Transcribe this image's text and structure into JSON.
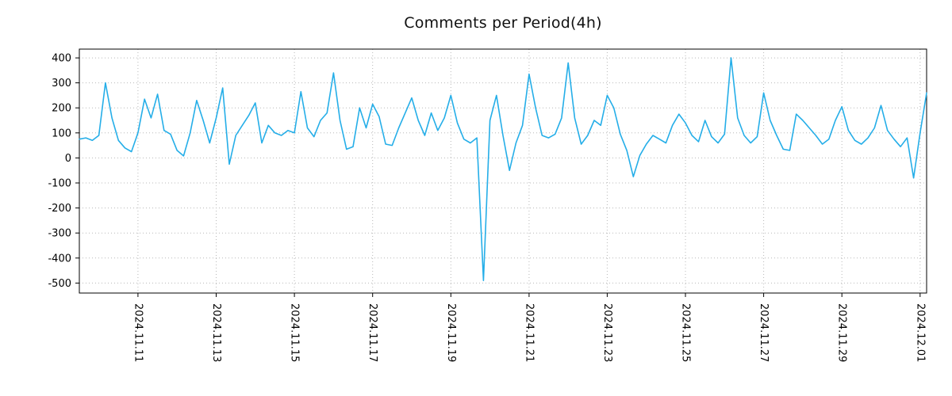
{
  "chart_data": {
    "type": "line",
    "title": "Comments per Period(4h)",
    "series_name": "comments",
    "line_color": "#25aee8",
    "grid": "dotted",
    "legend": "none",
    "xlabel": "",
    "ylabel": "",
    "x_start": "2024-11-09 12:00",
    "x_step_hours": 4,
    "xlim_hours": [
      0,
      520
    ],
    "ylim": [
      -540,
      435
    ],
    "y_ticks": [
      400,
      300,
      200,
      100,
      0,
      -100,
      -200,
      -300,
      -400,
      -500
    ],
    "x_ticks": [
      {
        "label": "2024.11.11",
        "hours": 36
      },
      {
        "label": "2024.11.13",
        "hours": 84
      },
      {
        "label": "2024.11.15",
        "hours": 132
      },
      {
        "label": "2024.11.17",
        "hours": 180
      },
      {
        "label": "2024.11.19",
        "hours": 228
      },
      {
        "label": "2024.11.21",
        "hours": 276
      },
      {
        "label": "2024.11.23",
        "hours": 324
      },
      {
        "label": "2024.11.25",
        "hours": 372
      },
      {
        "label": "2024.11.27",
        "hours": 420
      },
      {
        "label": "2024.11.29",
        "hours": 468
      },
      {
        "label": "2024.12.01",
        "hours": 516
      }
    ],
    "values": [
      75,
      80,
      70,
      90,
      300,
      160,
      70,
      40,
      25,
      100,
      235,
      160,
      255,
      110,
      95,
      30,
      8,
      100,
      230,
      150,
      60,
      160,
      280,
      -25,
      90,
      130,
      170,
      220,
      60,
      130,
      100,
      90,
      110,
      100,
      265,
      120,
      85,
      150,
      180,
      340,
      150,
      35,
      45,
      200,
      120,
      215,
      165,
      55,
      50,
      120,
      180,
      240,
      150,
      90,
      180,
      110,
      160,
      250,
      140,
      75,
      60,
      80,
      -490,
      150,
      250,
      90,
      -50,
      60,
      130,
      335,
      200,
      90,
      80,
      95,
      160,
      380,
      160,
      55,
      90,
      150,
      130,
      250,
      200,
      95,
      30,
      -75,
      10,
      55,
      90,
      75,
      60,
      130,
      175,
      140,
      90,
      65,
      150,
      85,
      60,
      95,
      400,
      160,
      90,
      60,
      85,
      260,
      150,
      90,
      35,
      30,
      175,
      150,
      120,
      90,
      55,
      75,
      150,
      205,
      110,
      70,
      55,
      80,
      120,
      210,
      110,
      75,
      45,
      80,
      -80,
      100,
      260
    ]
  }
}
